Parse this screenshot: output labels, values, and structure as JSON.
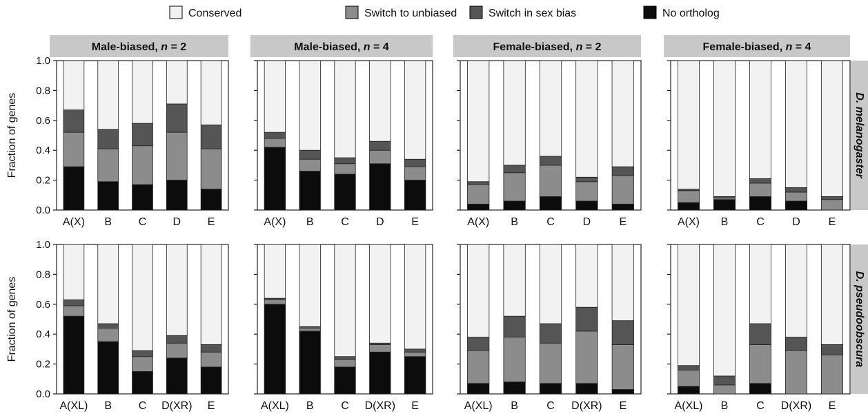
{
  "legend": [
    {
      "label": "Conserved",
      "color": "#f2f2f2"
    },
    {
      "label": "Switch to unbiased",
      "color": "#8c8c8c"
    },
    {
      "label": "Switch in sex bias",
      "color": "#555555"
    },
    {
      "label": "No ortholog",
      "color": "#0c0c0c"
    }
  ],
  "column_headers": [
    {
      "prefix": "Male-biased, ",
      "n": "n",
      "suffix": " = 2"
    },
    {
      "prefix": "Male-biased, ",
      "n": "n",
      "suffix": " = 4"
    },
    {
      "prefix": "Female-biased, ",
      "n": "n",
      "suffix": " = 2"
    },
    {
      "prefix": "Female-biased, ",
      "n": "n",
      "suffix": " = 4"
    }
  ],
  "row_labels": [
    "D. melanogaster",
    "D. pseudoobscura"
  ],
  "ylabel": "Fraction of genes",
  "yticks": [
    "0.0",
    "0.2",
    "0.4",
    "0.6",
    "0.8",
    "1.0"
  ],
  "chart_data": {
    "type": "bar",
    "stacked": true,
    "ylim": [
      0,
      1
    ],
    "ylabel": "Fraction of genes",
    "stack_order_bottom_to_top": [
      "No ortholog",
      "Switch to unbiased",
      "Switch in sex bias",
      "Conserved"
    ],
    "panels": [
      {
        "row": "D. melanogaster",
        "column": "Male-biased, n = 2",
        "categories": [
          "A(X)",
          "B",
          "C",
          "D",
          "E"
        ],
        "series": [
          {
            "name": "No ortholog",
            "values": [
              0.29,
              0.19,
              0.17,
              0.2,
              0.14
            ]
          },
          {
            "name": "Switch to unbiased",
            "values": [
              0.23,
              0.22,
              0.26,
              0.32,
              0.27
            ]
          },
          {
            "name": "Switch in sex bias",
            "values": [
              0.15,
              0.13,
              0.15,
              0.19,
              0.16
            ]
          },
          {
            "name": "Conserved",
            "values": [
              0.33,
              0.46,
              0.42,
              0.29,
              0.43
            ]
          }
        ]
      },
      {
        "row": "D. melanogaster",
        "column": "Male-biased, n = 4",
        "categories": [
          "A(X)",
          "B",
          "C",
          "D",
          "E"
        ],
        "series": [
          {
            "name": "No ortholog",
            "values": [
              0.42,
              0.26,
              0.24,
              0.31,
              0.2
            ]
          },
          {
            "name": "Switch to unbiased",
            "values": [
              0.06,
              0.08,
              0.07,
              0.09,
              0.09
            ]
          },
          {
            "name": "Switch in sex bias",
            "values": [
              0.04,
              0.06,
              0.04,
              0.06,
              0.05
            ]
          },
          {
            "name": "Conserved",
            "values": [
              0.48,
              0.6,
              0.65,
              0.54,
              0.66
            ]
          }
        ]
      },
      {
        "row": "D. melanogaster",
        "column": "Female-biased, n = 2",
        "categories": [
          "A(X)",
          "B",
          "C",
          "D",
          "E"
        ],
        "series": [
          {
            "name": "No ortholog",
            "values": [
              0.04,
              0.06,
              0.09,
              0.06,
              0.04
            ]
          },
          {
            "name": "Switch to unbiased",
            "values": [
              0.13,
              0.19,
              0.21,
              0.13,
              0.19
            ]
          },
          {
            "name": "Switch in sex bias",
            "values": [
              0.02,
              0.05,
              0.06,
              0.03,
              0.06
            ]
          },
          {
            "name": "Conserved",
            "values": [
              0.81,
              0.7,
              0.64,
              0.78,
              0.71
            ]
          }
        ]
      },
      {
        "row": "D. melanogaster",
        "column": "Female-biased, n = 4",
        "categories": [
          "A(X)",
          "B",
          "C",
          "D",
          "E"
        ],
        "series": [
          {
            "name": "No ortholog",
            "values": [
              0.05,
              0.07,
              0.09,
              0.06,
              0.0
            ]
          },
          {
            "name": "Switch to unbiased",
            "values": [
              0.08,
              0.01,
              0.09,
              0.06,
              0.07
            ]
          },
          {
            "name": "Switch in sex bias",
            "values": [
              0.01,
              0.01,
              0.03,
              0.03,
              0.02
            ]
          },
          {
            "name": "Conserved",
            "values": [
              0.86,
              0.91,
              0.79,
              0.85,
              0.91
            ]
          }
        ]
      },
      {
        "row": "D. pseudoobscura",
        "column": "Male-biased, n = 2",
        "categories": [
          "A(XL)",
          "B",
          "C",
          "D(XR)",
          "E"
        ],
        "series": [
          {
            "name": "No ortholog",
            "values": [
              0.52,
              0.35,
              0.15,
              0.24,
              0.18
            ]
          },
          {
            "name": "Switch to unbiased",
            "values": [
              0.07,
              0.09,
              0.1,
              0.1,
              0.1
            ]
          },
          {
            "name": "Switch in sex bias",
            "values": [
              0.04,
              0.03,
              0.04,
              0.05,
              0.05
            ]
          },
          {
            "name": "Conserved",
            "values": [
              0.37,
              0.53,
              0.71,
              0.61,
              0.67
            ]
          }
        ]
      },
      {
        "row": "D. pseudoobscura",
        "column": "Male-biased, n = 4",
        "categories": [
          "A(XL)",
          "B",
          "C",
          "D(XR)",
          "E"
        ],
        "series": [
          {
            "name": "No ortholog",
            "values": [
              0.6,
              0.42,
              0.18,
              0.28,
              0.25
            ]
          },
          {
            "name": "Switch to unbiased",
            "values": [
              0.03,
              0.02,
              0.05,
              0.05,
              0.03
            ]
          },
          {
            "name": "Switch in sex bias",
            "values": [
              0.01,
              0.01,
              0.02,
              0.01,
              0.02
            ]
          },
          {
            "name": "Conserved",
            "values": [
              0.36,
              0.55,
              0.75,
              0.66,
              0.7
            ]
          }
        ]
      },
      {
        "row": "D. pseudoobscura",
        "column": "Female-biased, n = 2",
        "categories": [
          "A(XL)",
          "B",
          "C",
          "D(XR)",
          "E"
        ],
        "series": [
          {
            "name": "No ortholog",
            "values": [
              0.07,
              0.08,
              0.07,
              0.07,
              0.03
            ]
          },
          {
            "name": "Switch to unbiased",
            "values": [
              0.22,
              0.3,
              0.27,
              0.35,
              0.3
            ]
          },
          {
            "name": "Switch in sex bias",
            "values": [
              0.09,
              0.14,
              0.13,
              0.16,
              0.16
            ]
          },
          {
            "name": "Conserved",
            "values": [
              0.62,
              0.48,
              0.53,
              0.42,
              0.51
            ]
          }
        ]
      },
      {
        "row": "D. pseudoobscura",
        "column": "Female-biased, n = 4",
        "categories": [
          "A(XL)",
          "B",
          "C",
          "D(XR)",
          "E"
        ],
        "series": [
          {
            "name": "No ortholog",
            "values": [
              0.05,
              0.0,
              0.07,
              0.0,
              0.0
            ]
          },
          {
            "name": "Switch to unbiased",
            "values": [
              0.11,
              0.06,
              0.26,
              0.29,
              0.26
            ]
          },
          {
            "name": "Switch in sex bias",
            "values": [
              0.03,
              0.06,
              0.14,
              0.09,
              0.07
            ]
          },
          {
            "name": "Conserved",
            "values": [
              0.81,
              0.88,
              0.53,
              0.62,
              0.67
            ]
          }
        ]
      }
    ]
  }
}
